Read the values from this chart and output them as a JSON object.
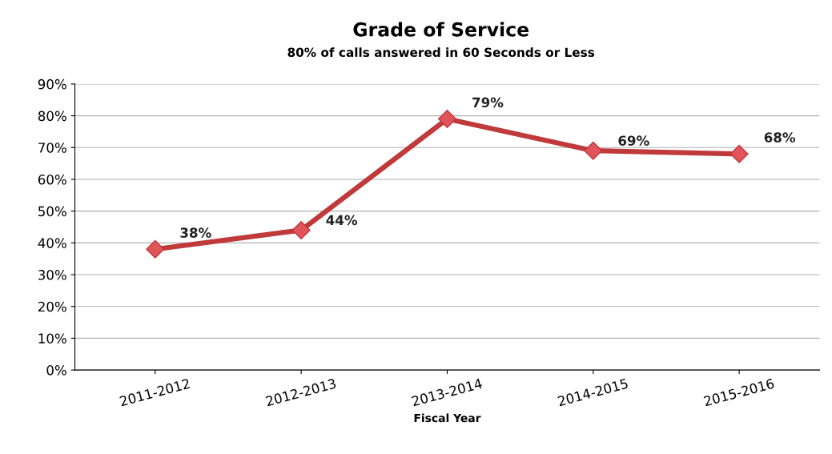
{
  "chart_data": {
    "type": "line",
    "title": "Grade of Service",
    "subtitle": "80% of calls answered in 60 Seconds or Less",
    "xlabel": "Fiscal Year",
    "categories": [
      "2011-2012",
      "2012-2013",
      "2013-2014",
      "2014-2015",
      "2015-2016"
    ],
    "series": [
      {
        "color": "#c0393b",
        "values": [
          38,
          44,
          79,
          69,
          68
        ],
        "value_labels": [
          "38%",
          "44%",
          "79%",
          "69%",
          "68%"
        ]
      }
    ],
    "ylim": [
      0,
      90
    ],
    "yticks": [
      {
        "value": 0,
        "label": "0%"
      },
      {
        "value": 10,
        "label": "10%"
      },
      {
        "value": 20,
        "label": "20%"
      },
      {
        "value": 30,
        "label": "30%"
      },
      {
        "value": 40,
        "label": "40%"
      },
      {
        "value": 50,
        "label": "50%"
      },
      {
        "value": 60,
        "label": "60%"
      },
      {
        "value": 70,
        "label": "70%"
      },
      {
        "value": 80,
        "label": "80%"
      },
      {
        "value": 90,
        "label": "90%"
      }
    ],
    "grid": "y",
    "marker": "diamond",
    "line_style": "solid"
  }
}
